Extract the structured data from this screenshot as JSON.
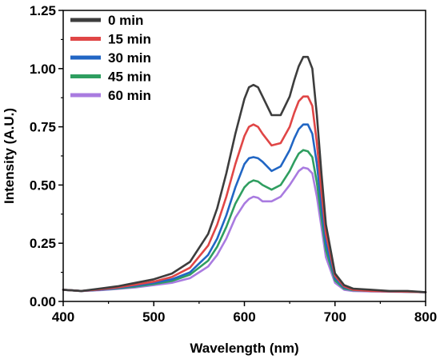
{
  "chart_data": {
    "type": "line",
    "title": "",
    "xlabel": "Wavelength (nm)",
    "ylabel": "Intensity (A.U.)",
    "xlim": [
      400,
      800
    ],
    "ylim": [
      0,
      1.25
    ],
    "xticks": [
      400,
      500,
      600,
      700,
      800
    ],
    "yticks": [
      0.0,
      0.25,
      0.5,
      0.75,
      1.0,
      1.25
    ],
    "xtick_labels": [
      "400",
      "500",
      "600",
      "700",
      "800"
    ],
    "ytick_labels": [
      "0.00",
      "0.25",
      "0.50",
      "0.75",
      "1.00",
      "1.25"
    ],
    "grid": false,
    "legend_position": "top-left",
    "x": [
      400,
      420,
      440,
      460,
      480,
      500,
      520,
      540,
      560,
      570,
      580,
      590,
      600,
      605,
      610,
      615,
      620,
      630,
      640,
      650,
      655,
      660,
      665,
      670,
      675,
      680,
      685,
      690,
      700,
      710,
      720,
      740,
      760,
      780,
      800
    ],
    "series": [
      {
        "name": "0 min",
        "color": "#3d3d3d",
        "values": [
          0.05,
          0.045,
          0.055,
          0.065,
          0.08,
          0.095,
          0.12,
          0.17,
          0.29,
          0.4,
          0.55,
          0.72,
          0.87,
          0.92,
          0.93,
          0.92,
          0.88,
          0.8,
          0.8,
          0.88,
          0.95,
          1.01,
          1.05,
          1.05,
          1.0,
          0.8,
          0.55,
          0.33,
          0.12,
          0.07,
          0.055,
          0.05,
          0.045,
          0.045,
          0.04
        ]
      },
      {
        "name": "15 min",
        "color": "#e04646",
        "values": [
          0.05,
          0.045,
          0.052,
          0.06,
          0.072,
          0.085,
          0.105,
          0.145,
          0.24,
          0.33,
          0.45,
          0.59,
          0.71,
          0.75,
          0.76,
          0.75,
          0.72,
          0.67,
          0.68,
          0.75,
          0.81,
          0.86,
          0.88,
          0.88,
          0.84,
          0.68,
          0.47,
          0.29,
          0.11,
          0.065,
          0.05,
          0.045,
          0.043,
          0.042,
          0.04
        ]
      },
      {
        "name": "30 min",
        "color": "#2166c4",
        "values": [
          0.05,
          0.045,
          0.05,
          0.058,
          0.068,
          0.08,
          0.095,
          0.125,
          0.2,
          0.27,
          0.37,
          0.49,
          0.59,
          0.615,
          0.62,
          0.615,
          0.6,
          0.56,
          0.58,
          0.65,
          0.7,
          0.74,
          0.76,
          0.76,
          0.72,
          0.59,
          0.41,
          0.25,
          0.1,
          0.06,
          0.05,
          0.045,
          0.043,
          0.042,
          0.04
        ]
      },
      {
        "name": "45 min",
        "color": "#2f9e60",
        "values": [
          0.05,
          0.045,
          0.05,
          0.056,
          0.064,
          0.075,
          0.088,
          0.115,
          0.175,
          0.235,
          0.32,
          0.42,
          0.49,
          0.51,
          0.52,
          0.515,
          0.5,
          0.48,
          0.5,
          0.56,
          0.6,
          0.635,
          0.65,
          0.645,
          0.62,
          0.51,
          0.36,
          0.22,
          0.09,
          0.055,
          0.048,
          0.045,
          0.043,
          0.042,
          0.04
        ]
      },
      {
        "name": "60 min",
        "color": "#a97be0",
        "values": [
          0.05,
          0.045,
          0.048,
          0.054,
          0.06,
          0.07,
          0.08,
          0.1,
          0.15,
          0.2,
          0.27,
          0.36,
          0.42,
          0.44,
          0.45,
          0.445,
          0.43,
          0.43,
          0.45,
          0.5,
          0.53,
          0.56,
          0.575,
          0.57,
          0.55,
          0.45,
          0.32,
          0.19,
          0.08,
          0.05,
          0.045,
          0.043,
          0.042,
          0.041,
          0.04
        ]
      }
    ]
  }
}
